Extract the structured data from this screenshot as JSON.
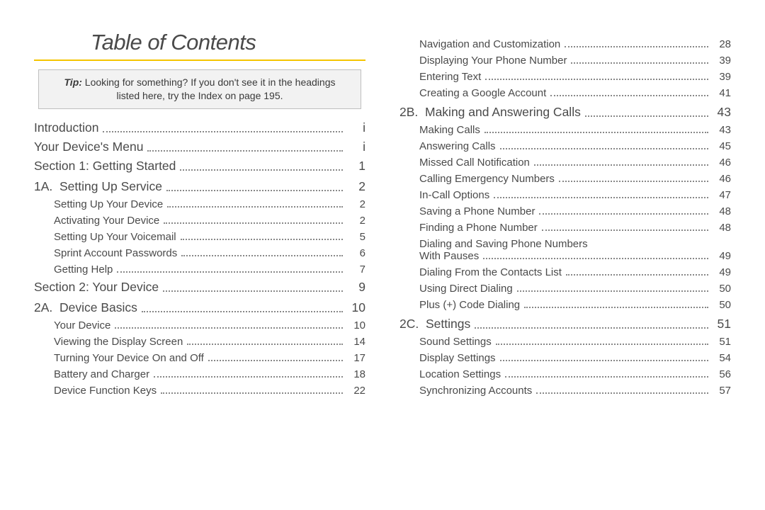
{
  "title": "Table of Contents",
  "rule_color": "#f5c400",
  "tip": {
    "label": "Tip:",
    "text_line1": " Looking for something? If you don't see it in the headings",
    "text_line2": "listed here, try the Index on page 195."
  },
  "left": [
    {
      "level": "top",
      "label": "Introduction",
      "page": "i"
    },
    {
      "level": "top",
      "label": "Your Device's Menu",
      "page": "i"
    },
    {
      "level": "top",
      "label": "Section 1: Getting Started",
      "page": "1"
    },
    {
      "level": "sec",
      "label": "1A.  Setting Up Service",
      "page": "2"
    },
    {
      "level": "sub",
      "label": "Setting Up Your Device",
      "page": "2"
    },
    {
      "level": "sub",
      "label": "Activating Your Device",
      "page": "2"
    },
    {
      "level": "sub",
      "label": "Setting Up Your Voicemail",
      "page": "5"
    },
    {
      "level": "sub",
      "label": "Sprint Account Passwords",
      "page": "6"
    },
    {
      "level": "sub",
      "label": "Getting Help",
      "page": "7"
    },
    {
      "level": "top",
      "label": "Section 2: Your Device",
      "page": "9"
    },
    {
      "level": "sec",
      "label": "2A.  Device Basics",
      "page": "10"
    },
    {
      "level": "sub",
      "label": "Your Device",
      "page": "10"
    },
    {
      "level": "sub",
      "label": "Viewing the Display Screen",
      "page": "14"
    },
    {
      "level": "sub",
      "label": "Turning Your Device On and Off",
      "page": "17"
    },
    {
      "level": "sub",
      "label": "Battery and Charger",
      "page": "18"
    },
    {
      "level": "sub",
      "label": "Device Function Keys",
      "page": "22"
    }
  ],
  "right": [
    {
      "level": "sub",
      "label": "Navigation and Customization",
      "page": "28"
    },
    {
      "level": "sub",
      "label": "Displaying Your Phone Number",
      "page": "39"
    },
    {
      "level": "sub",
      "label": "Entering Text",
      "page": "39"
    },
    {
      "level": "sub",
      "label": "Creating a Google Account",
      "page": "41"
    },
    {
      "level": "sec",
      "label": "2B.  Making and Answering Calls",
      "page": "43"
    },
    {
      "level": "sub",
      "label": "Making Calls",
      "page": "43"
    },
    {
      "level": "sub",
      "label": "Answering Calls",
      "page": "45"
    },
    {
      "level": "sub",
      "label": "Missed Call Notification",
      "page": "46"
    },
    {
      "level": "sub",
      "label": "Calling Emergency Numbers",
      "page": "46"
    },
    {
      "level": "sub",
      "label": "In-Call Options",
      "page": "47"
    },
    {
      "level": "sub",
      "label": "Saving a Phone Number",
      "page": "48"
    },
    {
      "level": "sub",
      "label": "Finding a Phone Number",
      "page": "48"
    },
    {
      "level": "sub2",
      "prefix": "Dialing and Saving Phone Numbers",
      "label": "With Pauses",
      "page": "49"
    },
    {
      "level": "sub",
      "label": "Dialing From the Contacts List",
      "page": "49"
    },
    {
      "level": "sub",
      "label": "Using Direct Dialing",
      "page": "50"
    },
    {
      "level": "sub",
      "label": "Plus (+) Code Dialing",
      "page": "50"
    },
    {
      "level": "sec",
      "label": "2C.  Settings",
      "page": "51"
    },
    {
      "level": "sub",
      "label": "Sound Settings",
      "page": "51"
    },
    {
      "level": "sub",
      "label": "Display Settings",
      "page": "54"
    },
    {
      "level": "sub",
      "label": "Location Settings",
      "page": "56"
    },
    {
      "level": "sub",
      "label": "Synchronizing Accounts",
      "page": "57"
    }
  ]
}
